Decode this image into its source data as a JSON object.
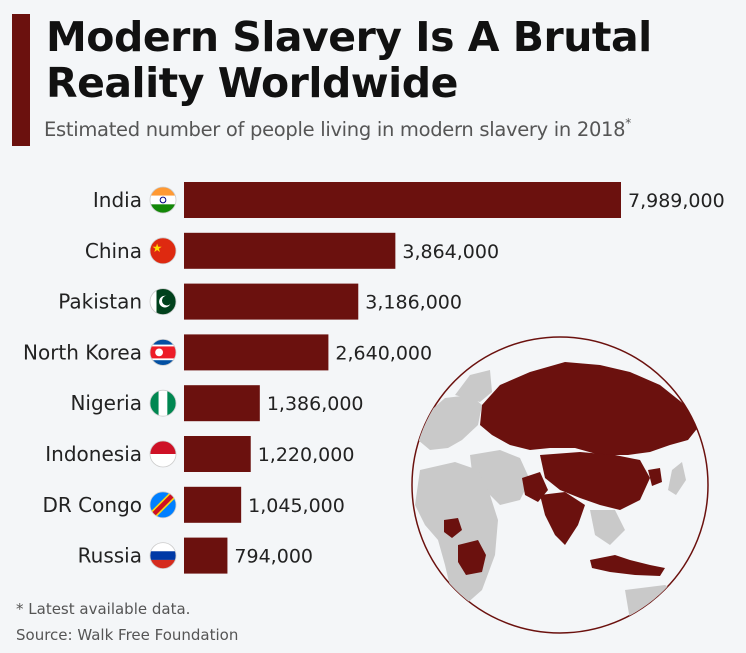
{
  "header": {
    "title": "Modern Slavery Is A Brutal Reality Worldwide",
    "subtitle": "Estimated number of people living in modern slavery in 2018",
    "subtitle_marker": "*"
  },
  "footer": {
    "footnote": "* Latest available data.",
    "source": "Source: Walk Free Foundation"
  },
  "colors": {
    "bar": "#6b110e",
    "accent": "#6b110e",
    "map_land": "#c9c9c9",
    "map_highlight": "#6b110e"
  },
  "chart_data": {
    "type": "bar",
    "orientation": "horizontal",
    "title": "Modern Slavery Is A Brutal Reality Worldwide",
    "subtitle": "Estimated number of people living in modern slavery in 2018*",
    "categories": [
      "India",
      "China",
      "Pakistan",
      "North Korea",
      "Nigeria",
      "Indonesia",
      "DR Congo",
      "Russia"
    ],
    "values": [
      7989000,
      3864000,
      3186000,
      2640000,
      1386000,
      1220000,
      1045000,
      794000
    ],
    "value_labels": [
      "7,989,000",
      "3,864,000",
      "3,186,000",
      "2,640,000",
      "1,386,000",
      "1,220,000",
      "1,045,000",
      "794,000"
    ],
    "flags": [
      "india-flag-icon",
      "china-flag-icon",
      "pakistan-flag-icon",
      "north-korea-flag-icon",
      "nigeria-flag-icon",
      "indonesia-flag-icon",
      "dr-congo-flag-icon",
      "russia-flag-icon"
    ],
    "grid": false,
    "legend": "none"
  }
}
